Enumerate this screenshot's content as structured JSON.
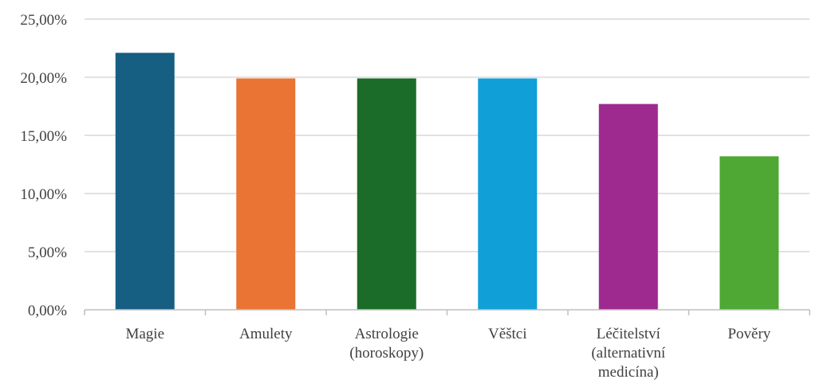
{
  "chart_data": {
    "type": "bar",
    "categories": [
      [
        "Magie"
      ],
      [
        "Amulety"
      ],
      [
        "Astrologie",
        "(horoskopy)"
      ],
      [
        "Věštci"
      ],
      [
        "Léčitelství",
        "(alternativní",
        "medicína)"
      ],
      [
        "Pověry"
      ]
    ],
    "values": [
      22.1,
      19.9,
      19.9,
      19.9,
      17.7,
      13.2
    ],
    "colors": [
      "#175e83",
      "#e97433",
      "#1b6c28",
      "#119fd8",
      "#9e2a8f",
      "#4fa833"
    ],
    "ylim": [
      0,
      25
    ],
    "yticks": [
      {
        "value": 0,
        "label": "0,00%"
      },
      {
        "value": 5,
        "label": "5,00%"
      },
      {
        "value": 10,
        "label": "10,00%"
      },
      {
        "value": 15,
        "label": "15,00%"
      },
      {
        "value": 20,
        "label": "20,00%"
      },
      {
        "value": 25,
        "label": "25,00%"
      }
    ],
    "grid": true,
    "legend": "none"
  }
}
